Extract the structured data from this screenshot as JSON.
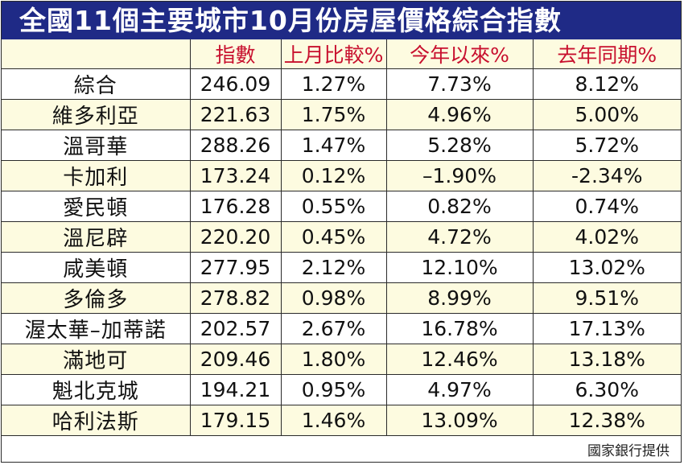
{
  "title": "全國11個主要城市10月份房屋價格綜合指數",
  "columns": [
    "",
    "指數",
    "上月比較%",
    "今年以來%",
    "去年同期%"
  ],
  "rows": [
    [
      "綜合",
      "246.09",
      "1.27%",
      "7.73%",
      "8.12%"
    ],
    [
      "維多利亞",
      "221.63",
      "1.75%",
      "4.96%",
      "5.00%"
    ],
    [
      "溫哥華",
      "288.26",
      "1.47%",
      "5.28%",
      "5.72%"
    ],
    [
      "卡加利",
      "173.24",
      "0.12%",
      "–1.90%",
      "-2.34%"
    ],
    [
      "愛民頓",
      "176.28",
      "0.55%",
      "0.82%",
      "0.74%"
    ],
    [
      "溫尼辟",
      "220.20",
      "0.45%",
      "4.72%",
      "4.02%"
    ],
    [
      "咸美頓",
      "277.95",
      "2.12%",
      "12.10%",
      "13.02%"
    ],
    [
      "多倫多",
      "278.82",
      "0.98%",
      "8.99%",
      "9.51%"
    ],
    [
      "渥太華–加蒂諾",
      "202.57",
      "2.67%",
      "16.78%",
      "17.13%"
    ],
    [
      "滿地可",
      "209.46",
      "1.80%",
      "12.46%",
      "13.18%"
    ],
    [
      "魁北克城",
      "194.21",
      "0.95%",
      "4.97%",
      "6.30%"
    ],
    [
      "哈利法斯",
      "179.15",
      "1.46%",
      "13.09%",
      "12.38%"
    ]
  ],
  "source": "國家銀行提供",
  "colors": {
    "title_bg": "#1f2a86",
    "title_text": "#ffffff",
    "header_text": "#c8102e",
    "alt_row_bg": "#fdfbe0",
    "row_bg": "#ffffff",
    "border": "#2a2a2a"
  }
}
